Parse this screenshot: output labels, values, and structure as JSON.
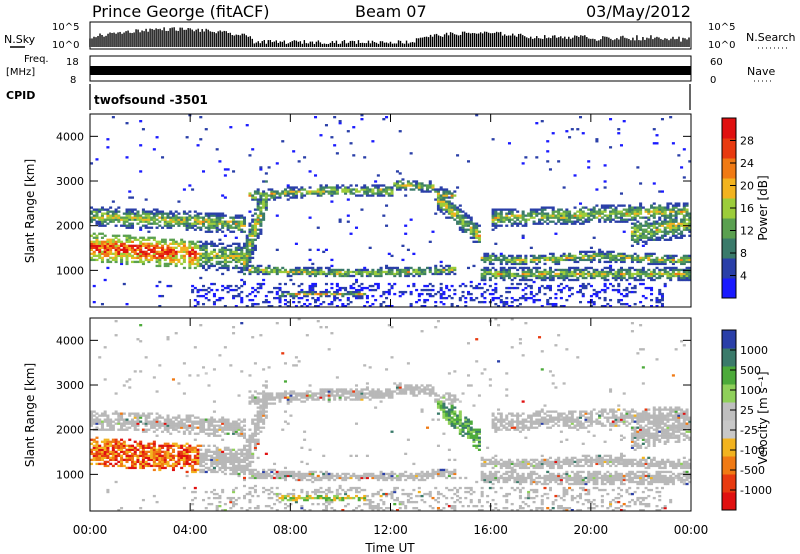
{
  "header": {
    "station": "Prince George (fitACF)",
    "beam": "Beam 07",
    "date": "03/May/2012"
  },
  "top_panels": {
    "nsky_label": "N.Sky",
    "nsky_ticks": [
      "10^5",
      "10^0"
    ],
    "nsearch_label": "N.Search",
    "nsearch_ticks": [
      "10^5",
      "10^0"
    ],
    "freq_label_1": "Freq.",
    "freq_label_2": "[MHz]",
    "freq_ticks": [
      "18",
      "8"
    ],
    "nave_label": "Nave",
    "nave_ticks": [
      "60",
      "0"
    ],
    "cpid_label": "CPID",
    "cpid_value": "twofsound -3501"
  },
  "colors": {
    "power_scale": [
      "#1a1aff",
      "#2a3fa8",
      "#3a7a6a",
      "#5aa050",
      "#9ccd3a",
      "#f2b31f",
      "#f07a14",
      "#e83a10",
      "#e01010"
    ],
    "velocity_scale": [
      "#2a3fa8",
      "#3a7a6a",
      "#4caa3a",
      "#8fd05a",
      "#bfbfbf",
      "#c8c8c8",
      "#f2b31f",
      "#f07a14",
      "#e83a10",
      "#e01010"
    ],
    "ground_scatter": "#b8b8b8"
  },
  "chart_data": [
    {
      "type": "heatmap",
      "name": "power",
      "ylabel": "Slant Range [km]",
      "ylim": [
        180,
        4500
      ],
      "yticks": [
        "4000",
        "3000",
        "2000",
        "1000"
      ],
      "ytick_values": [
        4000,
        3000,
        2000,
        1000
      ],
      "colorbar_label": "Power [dB]",
      "colorbar_ticks": [
        "28",
        "24",
        "20",
        "16",
        "12",
        "8",
        "4"
      ],
      "colorbar_range": [
        0,
        30
      ]
    },
    {
      "type": "heatmap",
      "name": "velocity",
      "ylabel": "Slant Range [km]",
      "ylim": [
        180,
        4500
      ],
      "yticks": [
        "4000",
        "3000",
        "2000",
        "1000"
      ],
      "ytick_values": [
        4000,
        3000,
        2000,
        1000
      ],
      "colorbar_label": "Velocity [m s⁻¹]",
      "colorbar_ticks": [
        "1000",
        "500",
        "100",
        "25",
        "-25",
        "-100",
        "-500",
        "-1000"
      ],
      "xlabel": "Time UT",
      "xticks": [
        "00:00",
        "04:00",
        "08:00",
        "12:00",
        "16:00",
        "20:00",
        "00:00"
      ],
      "xlim_hours": [
        0,
        24
      ]
    }
  ]
}
